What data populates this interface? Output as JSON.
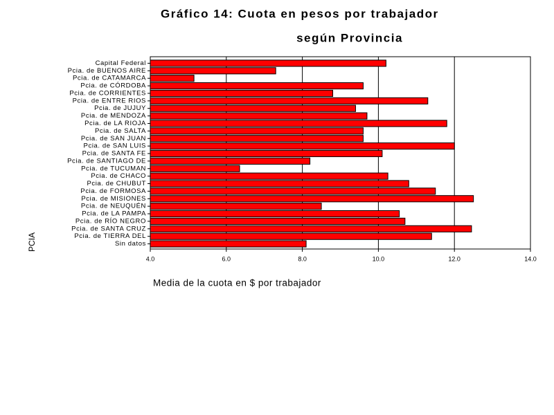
{
  "chart_data": {
    "type": "hbar",
    "title": "Gráfico 14: Cuota en pesos por trabajador",
    "subtitle": "según Provincia",
    "x_label": "Media de la cuota en $ por trabajador",
    "y_label": "PCIA",
    "color": "#ff0000",
    "grid": true,
    "categories": [
      "Capital Federal",
      "Pcia. de BUENOS AIRE",
      "Pcia. de CATAMARCA",
      "Pcia. de CÓRDOBA",
      "Pcia. de CORRIENTES",
      "Pcia. de ENTRE RIOS",
      "Pcia. de JUJUY",
      "Pcia. de MENDOZA",
      "Pcia. de LA RIOJA",
      "Pcia. de SALTA",
      "Pcia. de SAN JUAN",
      "Pcia. de SAN LUIS",
      "Pcia. de SANTA FE",
      "Pcia. de SANTIAGO DE",
      "Pcia. de TUCUMAN",
      "Pcia. de CHACO",
      "Pcia. de CHUBUT",
      "Pcia. de FORMOSA",
      "Pcia. de MISIONES",
      "Pcia. de NEUQUÉN",
      "Pcia. de LA PAMPA",
      "Pcia. de RÍO NEGRO",
      "Pcia. de SANTA CRUZ",
      "Pcia. de TIERRA DEL",
      "Sin datos"
    ],
    "values": [
      10.2,
      7.3,
      5.15,
      9.6,
      8.8,
      11.3,
      9.4,
      9.7,
      11.8,
      9.6,
      9.6,
      12.0,
      10.1,
      8.2,
      6.35,
      10.25,
      10.8,
      11.5,
      12.5,
      8.5,
      10.55,
      10.7,
      12.45,
      11.4,
      8.1
    ],
    "xlim": [
      4,
      14
    ],
    "xticks": [
      {
        "value": 4,
        "label": "4.0"
      },
      {
        "value": 6,
        "label": "6.0"
      },
      {
        "value": 8,
        "label": "8.0"
      },
      {
        "value": 10,
        "label": "10.0"
      },
      {
        "value": 12,
        "label": "12.0"
      },
      {
        "value": 14,
        "label": "14.0"
      }
    ]
  }
}
